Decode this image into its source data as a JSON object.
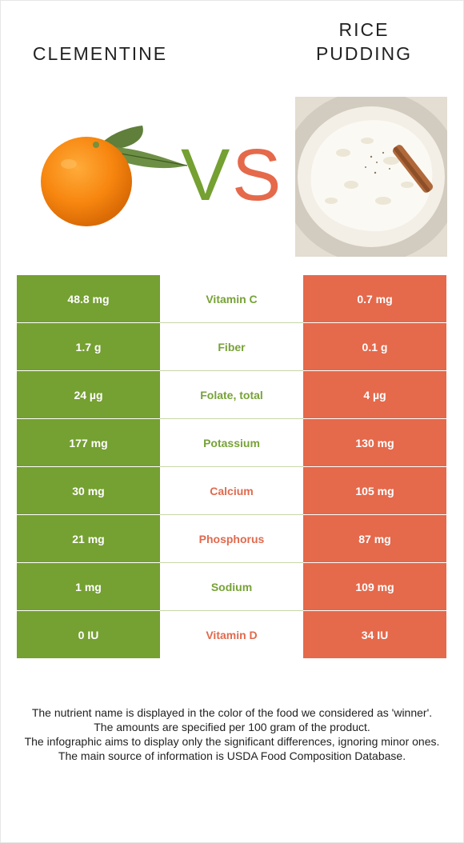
{
  "header": {
    "left_food": "CLEMENTINE",
    "right_food_line1": "RICE",
    "right_food_line2": "PUDDING"
  },
  "colors": {
    "left_accent": "#75a032",
    "right_accent": "#e5694b"
  },
  "vs": {
    "v": "V",
    "s": "S"
  },
  "rows": [
    {
      "left": "48.8 mg",
      "nutrient": "Vitamin C",
      "right": "0.7 mg",
      "winner": "left"
    },
    {
      "left": "1.7 g",
      "nutrient": "Fiber",
      "right": "0.1 g",
      "winner": "left"
    },
    {
      "left": "24 µg",
      "nutrient": "Folate, total",
      "right": "4 µg",
      "winner": "left"
    },
    {
      "left": "177 mg",
      "nutrient": "Potassium",
      "right": "130 mg",
      "winner": "left"
    },
    {
      "left": "30 mg",
      "nutrient": "Calcium",
      "right": "105 mg",
      "winner": "right"
    },
    {
      "left": "21 mg",
      "nutrient": "Phosphorus",
      "right": "87 mg",
      "winner": "right"
    },
    {
      "left": "1 mg",
      "nutrient": "Sodium",
      "right": "109 mg",
      "winner": "left"
    },
    {
      "left": "0 IU",
      "nutrient": "Vitamin D",
      "right": "34 IU",
      "winner": "right"
    }
  ],
  "footnote": {
    "line1": "The nutrient name is displayed in the color of the food we considered as 'winner'.",
    "line2": "The amounts are specified per 100 gram of the product.",
    "line3": "The infographic aims to display only the significant differences, ignoring minor ones.",
    "line4": "The main source of information is USDA Food Composition Database."
  }
}
